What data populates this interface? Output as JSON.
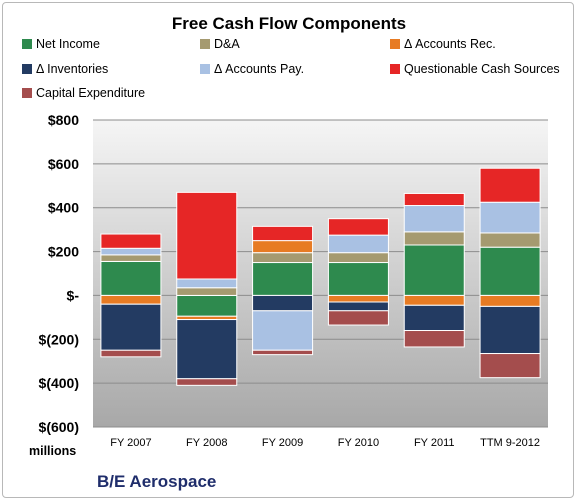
{
  "chart_data": {
    "type": "bar",
    "stacked": true,
    "title": "Free Cash Flow Components",
    "units_label": "millions",
    "footer": "B/E Aerospace",
    "categories": [
      "FY 2007",
      "FY 2008",
      "FY 2009",
      "FY 2010",
      "FY 2011",
      "TTM 9-2012"
    ],
    "ylim": [
      -600,
      800
    ],
    "yticks": [
      -600,
      -400,
      -200,
      0,
      200,
      400,
      600,
      800
    ],
    "ytick_labels": [
      "$(600)",
      "$(400)",
      "$(200)",
      "$-",
      "$200",
      "$400",
      "$600",
      "$800"
    ],
    "legend_position": "top",
    "series": [
      {
        "name": "Net Income",
        "color": "#2e8a4e",
        "values": [
          155,
          -95,
          150,
          150,
          230,
          220
        ]
      },
      {
        "name": "D&A",
        "color": "#a59a70",
        "values": [
          30,
          35,
          45,
          45,
          60,
          65
        ]
      },
      {
        "name": "Δ Accounts Rec.",
        "color": "#e77b23",
        "values": [
          -40,
          -15,
          55,
          -30,
          -45,
          -50
        ]
      },
      {
        "name": "Δ Inventories",
        "color": "#233b62",
        "values": [
          -210,
          -270,
          -70,
          -40,
          -115,
          -215
        ]
      },
      {
        "name": "Δ Accounts Pay.",
        "color": "#a9c1e3",
        "values": [
          30,
          40,
          -180,
          80,
          120,
          140
        ]
      },
      {
        "name": "Questionable Cash Sources",
        "color": "#e62626",
        "values": [
          65,
          395,
          65,
          75,
          55,
          155
        ]
      },
      {
        "name": "Capital Expenditure",
        "color": "#a44d4d",
        "values": [
          -30,
          -30,
          -20,
          -65,
          -75,
          -110
        ]
      }
    ]
  }
}
